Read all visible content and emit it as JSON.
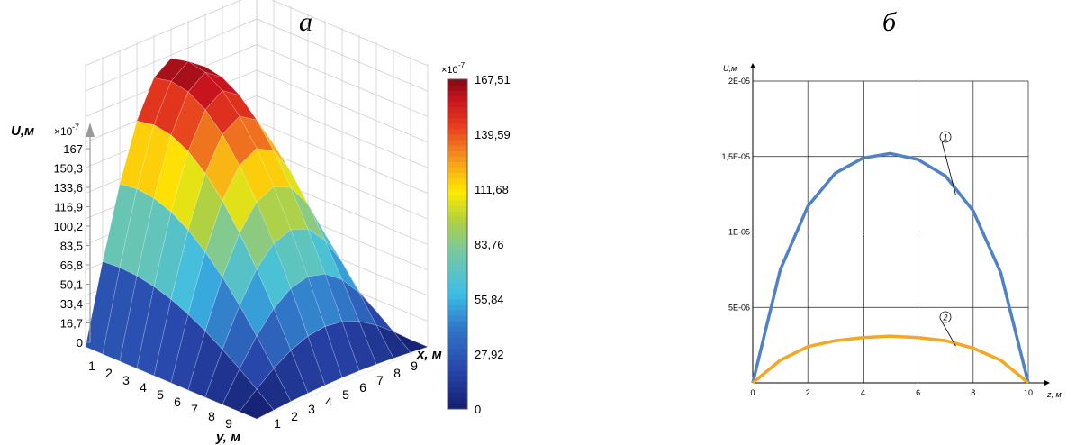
{
  "panel_labels": {
    "left": "а",
    "right": "б"
  },
  "chart_data": [
    {
      "type": "surface3d",
      "zlabel_main": "U,м",
      "zlabel_scale": "×10",
      "zlabel_exp": "-7",
      "xlabel": "x, м",
      "ylabel": "y, м",
      "z_ticks": [
        "0",
        "16,7",
        "33,4",
        "50,1",
        "66,8",
        "83,5",
        "100,2",
        "116,9",
        "133,6",
        "150,3",
        "167"
      ],
      "x_ticks": [
        "1",
        "2",
        "3",
        "4",
        "5",
        "6",
        "7",
        "8",
        "9"
      ],
      "y_ticks": [
        "1",
        "2",
        "3",
        "4",
        "5",
        "6",
        "7",
        "8",
        "9"
      ],
      "zlim": [
        0,
        167
      ],
      "grid_points": [
        0,
        1,
        2,
        3,
        4,
        5,
        6,
        7,
        8,
        9,
        10
      ],
      "max_value": 167.51,
      "colorbar": {
        "scale_label": "×10",
        "scale_exp": "-7",
        "ticks": [
          "0",
          "27,92",
          "55,84",
          "83,76",
          "111,68",
          "139,59",
          "167,51"
        ],
        "range": [
          0,
          167.51
        ]
      }
    },
    {
      "type": "line",
      "ylabel": "U,м",
      "xlabel": "z, м",
      "x_ticks": [
        "0",
        "2",
        "4",
        "6",
        "8",
        "10"
      ],
      "y_ticks": [
        "5E-06",
        "1E-05",
        "1,5E-05",
        "2E-05"
      ],
      "xlim": [
        0,
        10
      ],
      "ylim": [
        0,
        2e-05
      ],
      "grid": true,
      "x": [
        0,
        1,
        2,
        3,
        4,
        5,
        6,
        7,
        8,
        9,
        10
      ],
      "series": [
        {
          "label_marker": "1",
          "color": "#4f81c7",
          "values": [
            0,
            7.5e-06,
            1.17e-05,
            1.39e-05,
            1.49e-05,
            1.52e-05,
            1.48e-05,
            1.37e-05,
            1.14e-05,
            7.3e-06,
            0
          ]
        },
        {
          "label_marker": "2",
          "color": "#f5a623",
          "values": [
            0,
            1.5e-06,
            2.4e-06,
            2.8e-06,
            3e-06,
            3.1e-06,
            3e-06,
            2.8e-06,
            2.3e-06,
            1.5e-06,
            0
          ]
        }
      ]
    }
  ]
}
